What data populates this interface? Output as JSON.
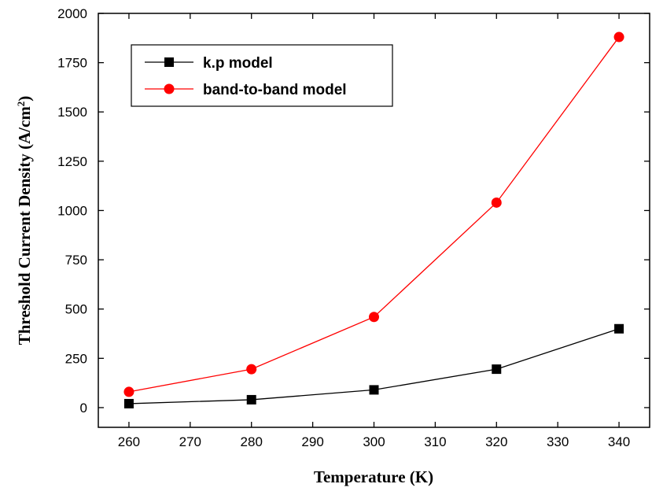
{
  "chart_data": {
    "type": "line",
    "x": [
      260,
      280,
      300,
      320,
      340
    ],
    "xlabel": "Temperature (K)",
    "ylabel_main": "Threshold Current Density (A/cm",
    "ylabel_sup": "2",
    "ylabel_end": ")",
    "xlim": [
      255,
      345
    ],
    "ylim": [
      -100,
      2000
    ],
    "xticks": [
      260,
      270,
      280,
      290,
      300,
      310,
      320,
      330,
      340
    ],
    "yticks": [
      0,
      250,
      500,
      750,
      1000,
      1250,
      1500,
      1750,
      2000
    ],
    "grid": false,
    "legend_position": "top-left",
    "series": [
      {
        "name": "k.p model",
        "marker": "square",
        "color": "#000000",
        "values": [
          20,
          40,
          90,
          195,
          400
        ]
      },
      {
        "name": "band-to-band model",
        "marker": "circle",
        "color": "#ff0000",
        "values": [
          80,
          195,
          460,
          1040,
          1880
        ]
      }
    ]
  }
}
